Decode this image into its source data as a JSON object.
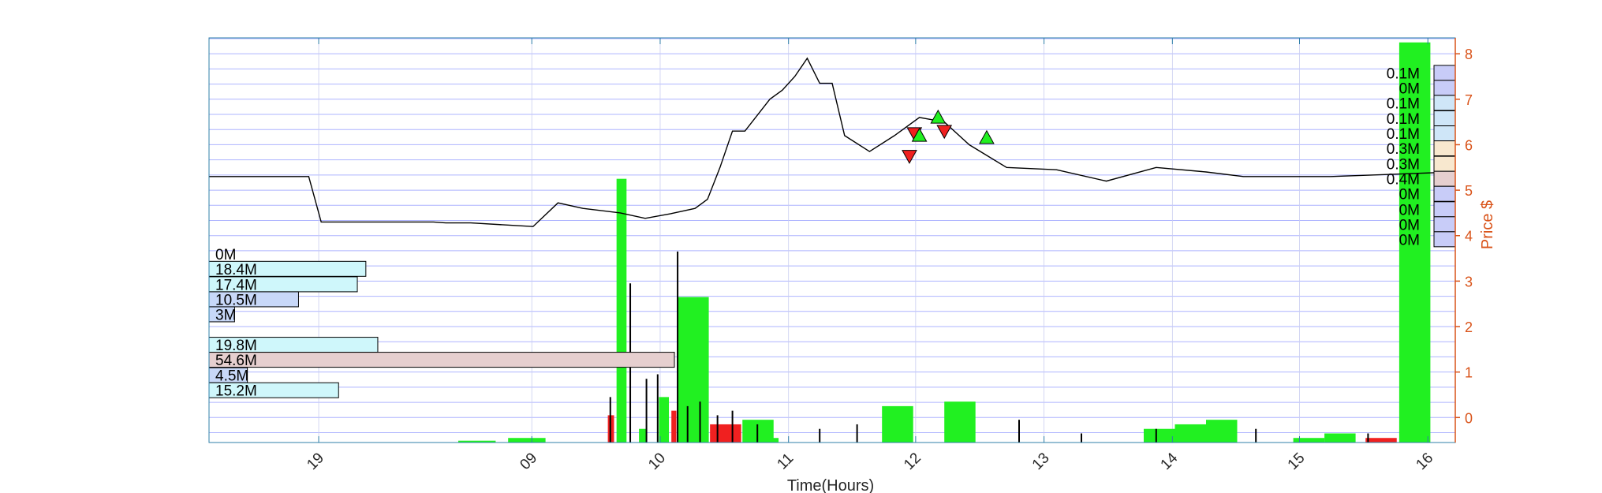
{
  "chart_data": {
    "type": "candlestick",
    "xlabel": "Time(Hours)",
    "ylabel": "Price $",
    "x_tick_labels": [
      "19",
      "09",
      "10",
      "11",
      "12",
      "13",
      "14",
      "15",
      "16"
    ],
    "y_tick_labels": [
      "0",
      "1",
      "2",
      "3",
      "4",
      "5",
      "6",
      "7",
      "8"
    ],
    "ylim": [
      -0.55,
      8.35
    ],
    "grid": true,
    "price_path": [
      [
        0.0,
        5.3
      ],
      [
        0.08,
        5.3
      ],
      [
        0.09,
        4.3
      ],
      [
        0.18,
        4.3
      ],
      [
        0.19,
        4.28
      ],
      [
        0.21,
        4.28
      ],
      [
        0.26,
        4.2
      ],
      [
        0.28,
        4.72
      ],
      [
        0.3,
        4.6
      ],
      [
        0.33,
        4.5
      ],
      [
        0.35,
        4.38
      ],
      [
        0.37,
        4.48
      ],
      [
        0.39,
        4.6
      ],
      [
        0.4,
        4.8
      ],
      [
        0.41,
        5.5
      ],
      [
        0.42,
        6.3
      ],
      [
        0.43,
        6.3
      ],
      [
        0.45,
        7.0
      ],
      [
        0.46,
        7.2
      ],
      [
        0.47,
        7.5
      ],
      [
        0.48,
        7.9
      ],
      [
        0.49,
        7.35
      ],
      [
        0.5,
        7.35
      ],
      [
        0.51,
        6.2
      ],
      [
        0.53,
        5.85
      ],
      [
        0.55,
        6.2
      ],
      [
        0.57,
        6.6
      ],
      [
        0.59,
        6.5
      ],
      [
        0.61,
        6.0
      ],
      [
        0.64,
        5.5
      ],
      [
        0.68,
        5.45
      ],
      [
        0.72,
        5.2
      ],
      [
        0.76,
        5.5
      ],
      [
        0.8,
        5.4
      ],
      [
        0.83,
        5.3
      ],
      [
        0.9,
        5.3
      ],
      [
        0.95,
        5.35
      ],
      [
        1.0,
        5.4
      ]
    ],
    "trade_markers": [
      {
        "type": "sell",
        "x": 0.562,
        "y": 5.75
      },
      {
        "type": "sell",
        "x": 0.566,
        "y": 6.25
      },
      {
        "type": "buy",
        "x": 0.57,
        "y": 6.2
      },
      {
        "type": "buy",
        "x": 0.585,
        "y": 6.6
      },
      {
        "type": "sell",
        "x": 0.59,
        "y": 6.3
      },
      {
        "type": "buy",
        "x": 0.624,
        "y": 6.15
      }
    ],
    "volume_bars": [
      {
        "x": 0.2,
        "w": 0.03,
        "h": 0.04,
        "color": "green"
      },
      {
        "x": 0.24,
        "w": 0.03,
        "h": 0.1,
        "color": "green"
      },
      {
        "x": 0.32,
        "w": 0.005,
        "h": 0.6,
        "color": "red"
      },
      {
        "x": 0.327,
        "w": 0.008,
        "h": 5.8,
        "color": "green"
      },
      {
        "x": 0.345,
        "w": 0.006,
        "h": 0.3,
        "color": "green"
      },
      {
        "x": 0.361,
        "w": 0.008,
        "h": 1.0,
        "color": "green"
      },
      {
        "x": 0.371,
        "w": 0.004,
        "h": 0.7,
        "color": "red"
      },
      {
        "x": 0.376,
        "w": 0.025,
        "h": 3.2,
        "color": "green"
      },
      {
        "x": 0.402,
        "w": 0.025,
        "h": 0.4,
        "color": "red"
      },
      {
        "x": 0.428,
        "w": 0.025,
        "h": 0.5,
        "color": "green"
      },
      {
        "x": 0.452,
        "w": 0.005,
        "h": 0.1,
        "color": "green"
      },
      {
        "x": 0.54,
        "w": 0.025,
        "h": 0.8,
        "color": "green"
      },
      {
        "x": 0.59,
        "w": 0.025,
        "h": 0.9,
        "color": "green"
      },
      {
        "x": 0.75,
        "w": 0.025,
        "h": 0.3,
        "color": "green"
      },
      {
        "x": 0.775,
        "w": 0.025,
        "h": 0.4,
        "color": "green"
      },
      {
        "x": 0.8,
        "w": 0.025,
        "h": 0.5,
        "color": "green"
      },
      {
        "x": 0.87,
        "w": 0.025,
        "h": 0.1,
        "color": "green"
      },
      {
        "x": 0.895,
        "w": 0.025,
        "h": 0.2,
        "color": "green"
      },
      {
        "x": 0.928,
        "w": 0.025,
        "h": 0.1,
        "color": "red"
      },
      {
        "x": 0.955,
        "w": 0.025,
        "h": 8.8,
        "color": "green"
      }
    ],
    "volume_profile_left": [
      {
        "label": "0M",
        "price": 3.6,
        "value": 0,
        "color": "#ffffff"
      },
      {
        "label": "18.4M",
        "price": 3.27,
        "value": 18.4,
        "color": "#cff7fb"
      },
      {
        "label": "17.4M",
        "price": 2.93,
        "value": 17.4,
        "color": "#cff7fb"
      },
      {
        "label": "10.5M",
        "price": 2.6,
        "value": 10.5,
        "color": "#c8d8f8"
      },
      {
        "label": "3M",
        "price": 2.27,
        "value": 3.0,
        "color": "#c8d8f8"
      },
      {
        "label": "19.8M",
        "price": 1.6,
        "value": 19.8,
        "color": "#cff7fb"
      },
      {
        "label": "54.6M",
        "price": 1.27,
        "value": 54.6,
        "color": "#e6cfcf"
      },
      {
        "label": "4.5M",
        "price": 0.93,
        "value": 4.5,
        "color": "#c8d8f8"
      },
      {
        "label": "15.2M",
        "price": 0.6,
        "value": 15.2,
        "color": "#cff7fb"
      }
    ],
    "volume_profile_right": [
      {
        "label": "0.1M",
        "price": 7.58,
        "color": "#c8ccf8"
      },
      {
        "label": "0M",
        "price": 7.25,
        "color": "#c8ccf8"
      },
      {
        "label": "0.1M",
        "price": 6.92,
        "color": "#cfe6f8"
      },
      {
        "label": "0.1M",
        "price": 6.58,
        "color": "#cfe6f8"
      },
      {
        "label": "0.1M",
        "price": 6.25,
        "color": "#cfe6f8"
      },
      {
        "label": "0.3M",
        "price": 5.92,
        "color": "#f8e8cf"
      },
      {
        "label": "0.3M",
        "price": 5.58,
        "color": "#f8e8cf"
      },
      {
        "label": "0.4M",
        "price": 5.25,
        "color": "#e6cfcf"
      },
      {
        "label": "0M",
        "price": 4.92,
        "color": "#c8ccf8"
      },
      {
        "label": "0M",
        "price": 4.58,
        "color": "#c8ccf8"
      },
      {
        "label": "0M",
        "price": 4.25,
        "color": "#c8ccf8"
      },
      {
        "label": "0M",
        "price": 3.92,
        "color": "#c8ccf8"
      }
    ],
    "colors": {
      "grid": "#aeb4ff",
      "axis": "#2f7fa8",
      "right_axis": "#d95319",
      "green": "#21f021",
      "red": "#f02020",
      "price": "#000000"
    }
  }
}
